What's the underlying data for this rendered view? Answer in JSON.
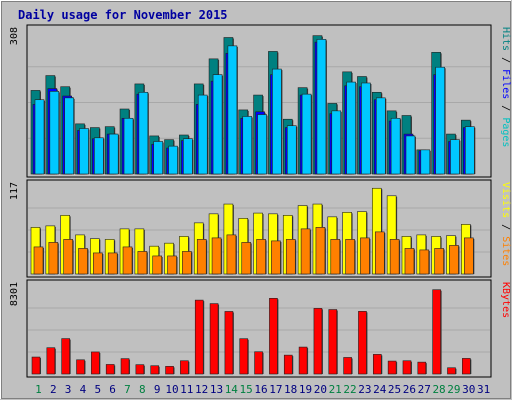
{
  "chart_data": {
    "type": "bar",
    "title": "Daily usage for November 2015",
    "categories": [
      "1",
      "2",
      "3",
      "4",
      "5",
      "6",
      "7",
      "8",
      "9",
      "10",
      "11",
      "12",
      "13",
      "14",
      "15",
      "16",
      "17",
      "18",
      "19",
      "20",
      "21",
      "22",
      "23",
      "24",
      "25",
      "26",
      "27",
      "28",
      "29",
      "30",
      "31"
    ],
    "weekend_days": [
      "1",
      "7",
      "8",
      "14",
      "15",
      "21",
      "22",
      "28",
      "29"
    ],
    "panels": [
      {
        "name": "pages-files-hits",
        "ymax_label": "308",
        "ymax": 308,
        "axis_labels": [
          {
            "text": "Pages",
            "color": "#00c0c0"
          },
          {
            "text": "Files",
            "color": "#0000ff"
          },
          {
            "text": "Hits",
            "color": "#008080"
          }
        ],
        "series": [
          {
            "name": "Hits",
            "color": "#008080",
            "values": [
              180,
              212,
              188,
              108,
              100,
              102,
              140,
              194,
              82,
              74,
              84,
              194,
              248,
              294,
              138,
              170,
              264,
              118,
              186,
              298,
              152,
              220,
              210,
              176,
              136,
              126,
              52,
              262,
              86,
              116,
              0
            ]
          },
          {
            "name": "Files",
            "color": "#0000ff",
            "values": [
              150,
              184,
              168,
              94,
              76,
              86,
              120,
              172,
              64,
              56,
              72,
              150,
              200,
              260,
              120,
              134,
              214,
              100,
              170,
              284,
              130,
              190,
              188,
              160,
              114,
              86,
              50,
              214,
              70,
              100,
              0
            ]
          },
          {
            "name": "Pages",
            "color": "#00c8ff",
            "values": [
              160,
              178,
              164,
              98,
              78,
              86,
              120,
              176,
              70,
              60,
              76,
              170,
              214,
              276,
              124,
              128,
              226,
              104,
              172,
              290,
              136,
              198,
              196,
              164,
              120,
              82,
              52,
              230,
              74,
              102,
              0
            ]
          }
        ]
      },
      {
        "name": "sites-visits",
        "ymax_label": "117",
        "ymax": 117,
        "axis_labels": [
          {
            "text": "Sites",
            "color": "#ff8000"
          },
          {
            "text": "Visits",
            "color": "#ffff00"
          }
        ],
        "series": [
          {
            "name": "Visits",
            "color": "#ffff00",
            "values": [
              62,
              64,
              78,
              52,
              47,
              46,
              60,
              60,
              37,
              41,
              50,
              68,
              80,
              93,
              74,
              81,
              80,
              78,
              91,
              93,
              76,
              82,
              83,
              114,
              104,
              50,
              52,
              50,
              51,
              66,
              0
            ]
          },
          {
            "name": "Sites",
            "color": "#ff8000",
            "values": [
              36,
              42,
              46,
              34,
              28,
              28,
              36,
              30,
              24,
              24,
              30,
              46,
              48,
              52,
              42,
              46,
              44,
              46,
              60,
              62,
              46,
              46,
              48,
              56,
              46,
              34,
              32,
              34,
              38,
              48,
              0
            ]
          }
        ]
      },
      {
        "name": "kbytes",
        "ymax_label": "8301",
        "ymax": 8301,
        "axis_labels": [
          {
            "text": "KBytes",
            "color": "#ff0000"
          }
        ],
        "series": [
          {
            "name": "KBytes",
            "color": "#ff0000",
            "values": [
              1600,
              2480,
              3340,
              1340,
              2080,
              900,
              1450,
              880,
              780,
              720,
              1250,
              6970,
              6640,
              5900,
              3330,
              2100,
              7140,
              1780,
              2540,
              6190,
              6080,
              1560,
              5910,
              1850,
              1220,
              1250,
              1120,
              7950,
              590,
              1470,
              0
            ]
          }
        ]
      }
    ]
  }
}
